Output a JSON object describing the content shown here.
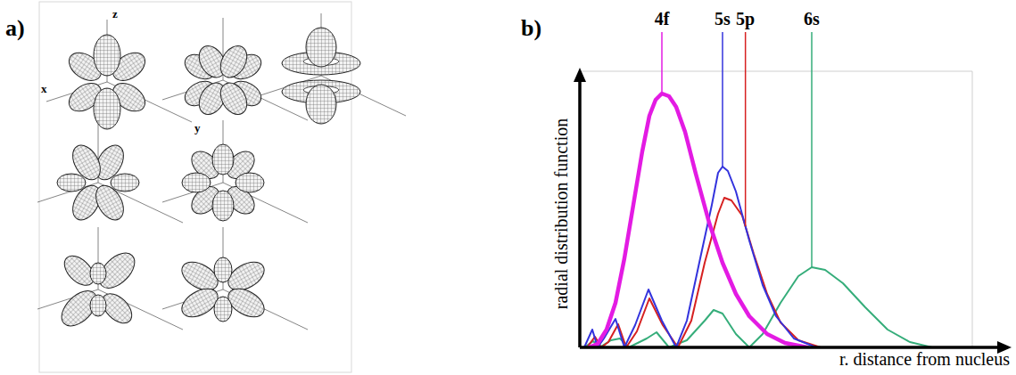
{
  "panel_a": {
    "panel_label": "a)",
    "axis_labels": {
      "x": "x",
      "y": "y",
      "z": "z"
    }
  },
  "chart_data": {
    "type": "line",
    "panel_label": "b)",
    "x_label": "r. distance from nucleus",
    "y_label": "radial distribution function",
    "xlim": [
      0,
      440
    ],
    "ylim": [
      0,
      310
    ],
    "xticks": [],
    "yticks": [],
    "tick_labels": false,
    "series": [
      {
        "name": "4f",
        "color": "#e31be3",
        "x": [
          10,
          20,
          30,
          40,
          50,
          60,
          70,
          78,
          85,
          92,
          100,
          108,
          118,
          130,
          145,
          160,
          175,
          190,
          210,
          230,
          255
        ],
        "values": [
          0,
          4,
          20,
          50,
          100,
          160,
          220,
          260,
          278,
          285,
          282,
          270,
          242,
          195,
          140,
          95,
          60,
          35,
          15,
          5,
          0
        ]
      },
      {
        "name": "5s",
        "color": "#3333dd",
        "x": [
          5,
          14,
          20,
          27,
          40,
          50,
          62,
          77,
          92,
          108,
          120,
          135,
          148,
          155,
          160,
          166,
          175,
          190,
          205,
          220,
          240,
          265
        ],
        "values": [
          0,
          20,
          0,
          10,
          32,
          0,
          25,
          65,
          30,
          0,
          30,
          100,
          160,
          196,
          203,
          198,
          175,
          120,
          70,
          35,
          10,
          0
        ]
      },
      {
        "name": "5p",
        "color": "#d62020",
        "x": [
          8,
          17,
          24,
          32,
          43,
          52,
          64,
          78,
          93,
          110,
          125,
          140,
          155,
          162,
          170,
          182,
          195,
          210,
          225,
          245,
          270
        ],
        "values": [
          0,
          12,
          0,
          6,
          26,
          0,
          18,
          55,
          25,
          0,
          30,
          95,
          150,
          168,
          165,
          148,
          105,
          60,
          28,
          8,
          0
        ]
      },
      {
        "name": "6s",
        "color": "#35ad7a",
        "x": [
          5,
          15,
          22,
          35,
          45,
          55,
          75,
          86,
          100,
          120,
          140,
          150,
          160,
          175,
          190,
          205,
          225,
          245,
          260,
          275,
          295,
          320,
          345,
          370,
          395
        ],
        "values": [
          0,
          7,
          0,
          8,
          10,
          0,
          10,
          17,
          0,
          8,
          30,
          42,
          38,
          15,
          0,
          15,
          50,
          80,
          90,
          87,
          72,
          45,
          20,
          6,
          0
        ]
      }
    ]
  }
}
